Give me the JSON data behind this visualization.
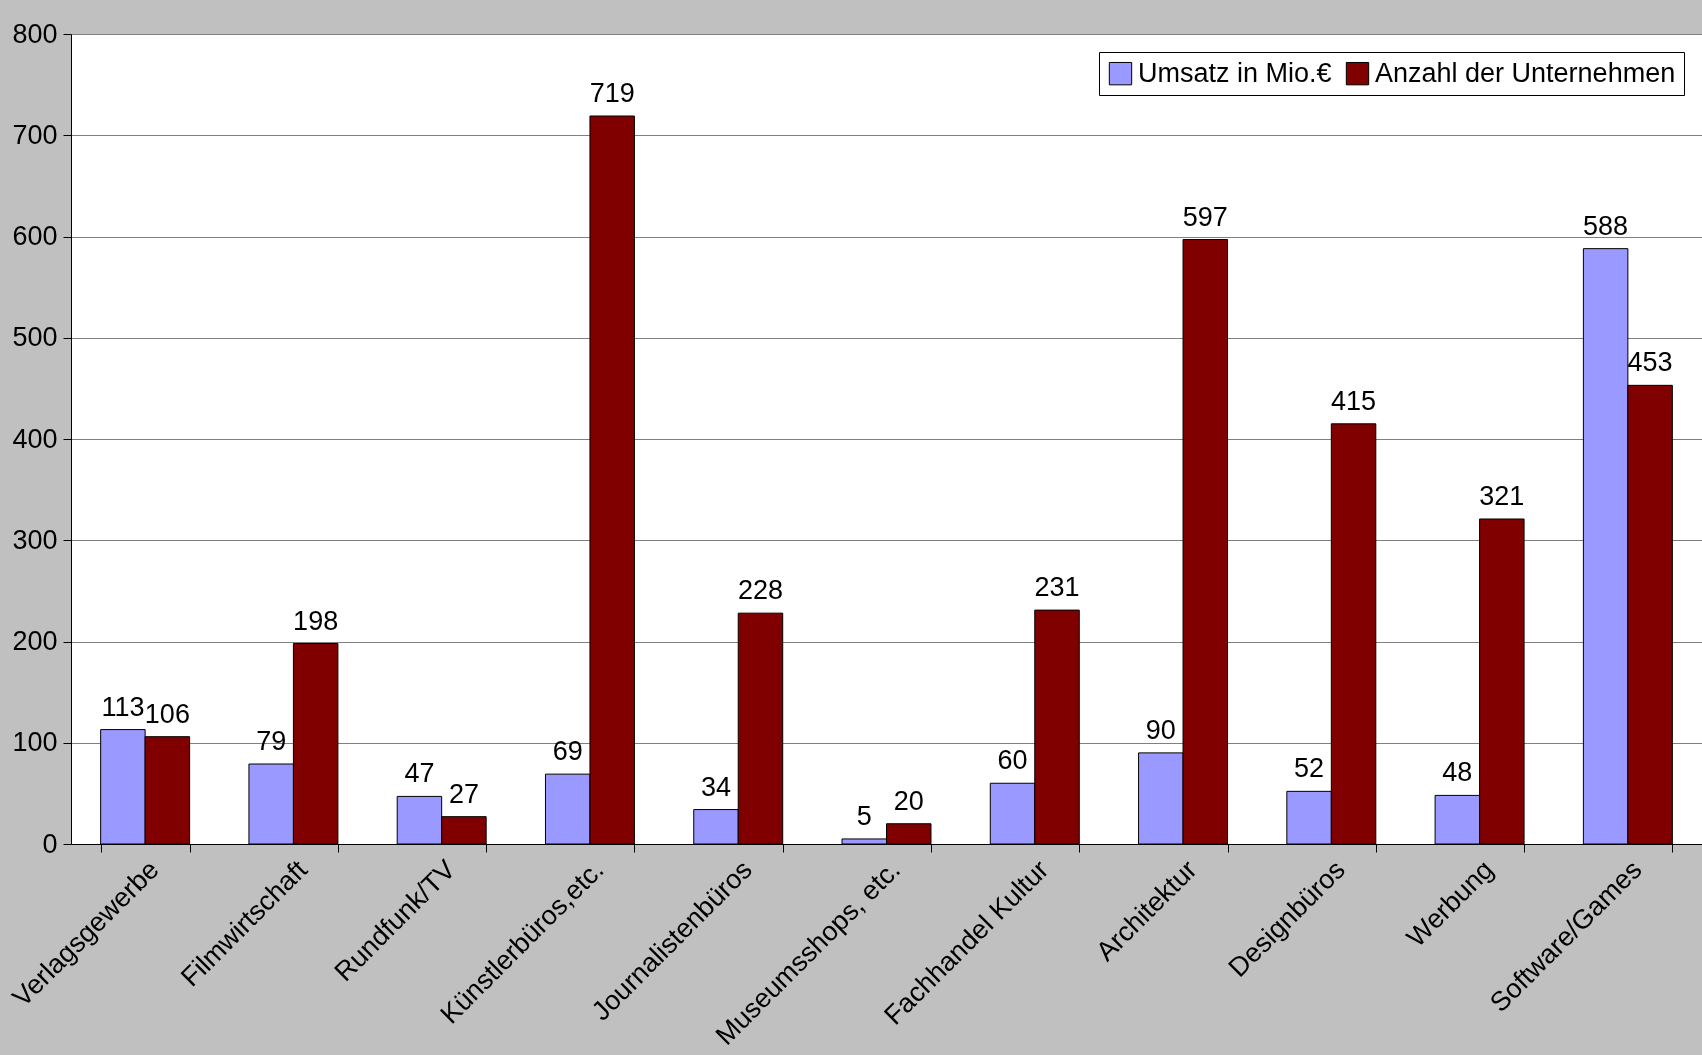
{
  "chart_data": {
    "type": "bar",
    "categories": [
      "Verlagsgewerbe",
      "Filmwirtschaft",
      "Rundfunk/TV",
      "Künstlerbüros,etc.",
      "Journalistenbüros",
      "Museumsshops, etc.",
      "Fachhandel Kultur",
      "Architektur",
      "Designbüros",
      "Werbung",
      "Software/Games"
    ],
    "series": [
      {
        "name": "Umsatz in Mio.€",
        "color": "#9999ff",
        "values": [
          113,
          79,
          47,
          69,
          34,
          5,
          60,
          90,
          52,
          48,
          588
        ]
      },
      {
        "name": "Anzahl der Unternehmen",
        "color": "#800000",
        "values": [
          106,
          198,
          27,
          719,
          228,
          20,
          231,
          597,
          415,
          321,
          453
        ]
      }
    ],
    "ylim": [
      0,
      800
    ],
    "yticks": [
      0,
      100,
      200,
      300,
      400,
      500,
      600,
      700,
      800
    ],
    "grid": "y",
    "legend": "top right",
    "data_labels": true
  }
}
